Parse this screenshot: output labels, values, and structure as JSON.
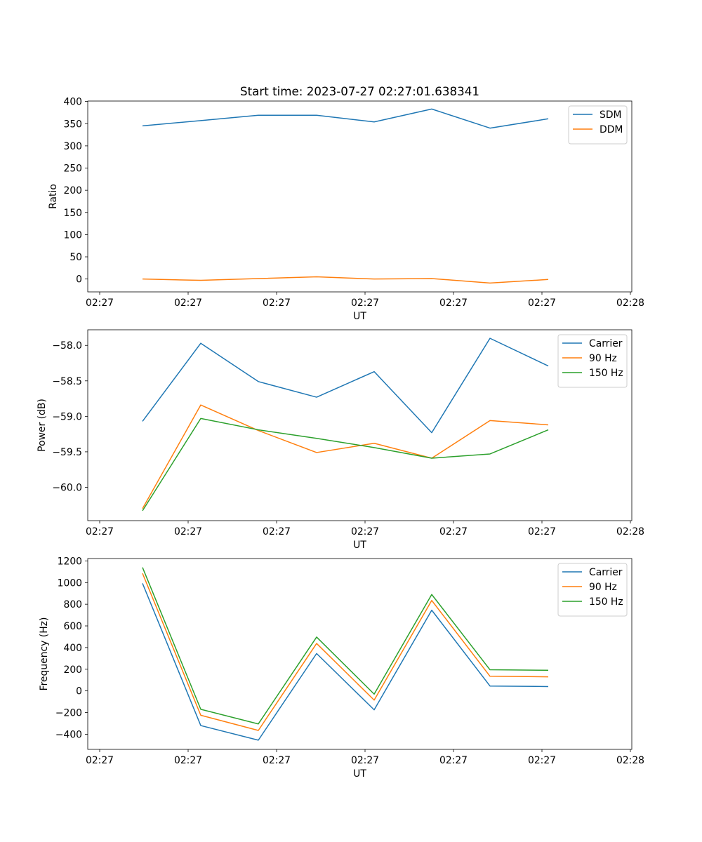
{
  "chart_data": [
    {
      "type": "line",
      "title": "Start time: 2023-07-27 02:27:01.638341",
      "xlabel": "UT",
      "ylabel": "Ratio",
      "x_tick_labels": [
        "02:27",
        "02:27",
        "02:27",
        "02:27",
        "02:27",
        "02:27",
        "02:28"
      ],
      "y_ticks": [
        0,
        50,
        100,
        150,
        200,
        250,
        300,
        350,
        400
      ],
      "y_tick_labels": [
        "0",
        "50",
        "100",
        "150",
        "200",
        "250",
        "300",
        "350",
        "400"
      ],
      "ylim": [
        -29,
        401
      ],
      "legend": "top-right",
      "series": [
        {
          "name": "SDM",
          "color": "#1f77b4",
          "values": [
            345,
            357,
            369,
            369,
            354,
            383,
            340,
            361
          ]
        },
        {
          "name": "DDM",
          "color": "#ff7f0e",
          "values": [
            0,
            -3,
            1,
            5,
            0,
            1,
            -9,
            -1
          ]
        }
      ]
    },
    {
      "type": "line",
      "title": "",
      "xlabel": "UT",
      "ylabel": "Power (dB)",
      "x_tick_labels": [
        "02:27",
        "02:27",
        "02:27",
        "02:27",
        "02:27",
        "02:27",
        "02:28"
      ],
      "y_ticks": [
        -60.0,
        -59.5,
        -59.0,
        -58.5,
        -58.0
      ],
      "y_tick_labels": [
        "−60.0",
        "−59.5",
        "−59.0",
        "−58.5",
        "−58.0"
      ],
      "ylim": [
        -60.47,
        -57.78
      ],
      "legend": "top-right",
      "series": [
        {
          "name": "Carrier",
          "color": "#1f77b4",
          "values": [
            -59.07,
            -57.97,
            -58.51,
            -58.73,
            -58.37,
            -59.23,
            -57.9,
            -58.29
          ]
        },
        {
          "name": "90 Hz",
          "color": "#ff7f0e",
          "values": [
            -60.3,
            -58.84,
            -59.2,
            -59.51,
            -59.38,
            -59.59,
            -59.06,
            -59.12
          ]
        },
        {
          "name": "150 Hz",
          "color": "#2ca02c",
          "values": [
            -60.33,
            -59.03,
            -59.19,
            -59.31,
            -59.44,
            -59.59,
            -59.53,
            -59.19
          ]
        }
      ]
    },
    {
      "type": "line",
      "title": "",
      "xlabel": "UT",
      "ylabel": "Frequency (Hz)",
      "x_tick_labels": [
        "02:27",
        "02:27",
        "02:27",
        "02:27",
        "02:27",
        "02:27",
        "02:28"
      ],
      "y_ticks": [
        -400,
        -200,
        0,
        200,
        400,
        600,
        800,
        1000,
        1200
      ],
      "y_tick_labels": [
        "−400",
        "−200",
        "0",
        "200",
        "400",
        "600",
        "800",
        "1000",
        "1200"
      ],
      "ylim": [
        -540,
        1222
      ],
      "legend": "top-right",
      "series": [
        {
          "name": "Carrier",
          "color": "#1f77b4",
          "values": [
            993,
            -320,
            -455,
            345,
            -175,
            745,
            45,
            40
          ]
        },
        {
          "name": "90 Hz",
          "color": "#ff7f0e",
          "values": [
            1085,
            -225,
            -365,
            438,
            -85,
            835,
            135,
            130
          ]
        },
        {
          "name": "150 Hz",
          "color": "#2ca02c",
          "values": [
            1140,
            -170,
            -305,
            497,
            -30,
            890,
            195,
            190
          ]
        }
      ]
    }
  ]
}
